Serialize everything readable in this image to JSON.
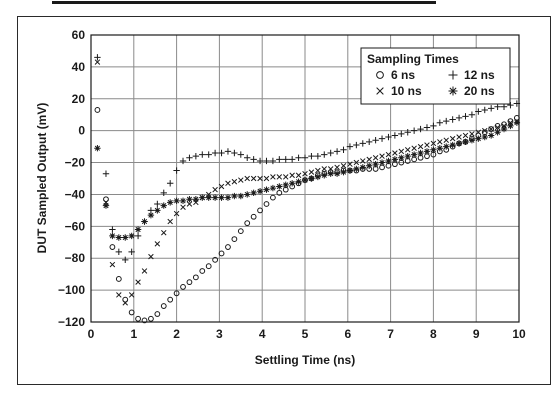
{
  "chart_data": {
    "type": "scatter",
    "title": "",
    "xlabel": "Settling Time (ns)",
    "ylabel": "DUT Sampled Output (mV)",
    "xlim": [
      0,
      10
    ],
    "ylim": [
      -120,
      60
    ],
    "xticks": [
      "0",
      "1",
      "2",
      "3",
      "4",
      "5",
      "6",
      "7",
      "8",
      "9",
      "10"
    ],
    "yticks": [
      "60",
      "40",
      "20",
      "0",
      "−20",
      "−40",
      "−60",
      "−80",
      "−100",
      "−120"
    ],
    "grid": true,
    "legend": {
      "title": "Sampling Times",
      "placement": "top-right",
      "entries": [
        {
          "label": "6 ns",
          "marker": "circle"
        },
        {
          "label": "12 ns",
          "marker": "plus"
        },
        {
          "label": "10 ns",
          "marker": "cross"
        },
        {
          "label": "20 ns",
          "marker": "star"
        }
      ]
    },
    "series": [
      {
        "name": "6 ns",
        "marker": "circle",
        "x": [
          0.15,
          0.35,
          0.5,
          0.65,
          0.8,
          0.95,
          1.1,
          1.25,
          1.4,
          1.55,
          1.7,
          1.85,
          2.0,
          2.15,
          2.3,
          2.45,
          2.6,
          2.75,
          2.9,
          3.05,
          3.2,
          3.35,
          3.5,
          3.65,
          3.8,
          3.95,
          4.1,
          4.25,
          4.4,
          4.55,
          4.7,
          4.85,
          5.0,
          5.15,
          5.3,
          5.45,
          5.6,
          5.75,
          5.9,
          6.05,
          6.2,
          6.35,
          6.5,
          6.65,
          6.8,
          6.95,
          7.1,
          7.25,
          7.4,
          7.55,
          7.7,
          7.85,
          8.0,
          8.15,
          8.3,
          8.45,
          8.6,
          8.75,
          8.9,
          9.05,
          9.2,
          9.35,
          9.5,
          9.65,
          9.8,
          9.95
        ],
        "y": [
          13,
          -43,
          -73,
          -93,
          -106,
          -114,
          -118,
          -119,
          -118,
          -115,
          -110,
          -106,
          -102,
          -98,
          -95,
          -92,
          -88,
          -85,
          -81,
          -77,
          -73,
          -68,
          -63,
          -58,
          -54,
          -50,
          -46,
          -42,
          -39,
          -37,
          -35,
          -33,
          -31,
          -30,
          -28,
          -27,
          -26,
          -26,
          -25,
          -25,
          -25,
          -24,
          -24,
          -24,
          -23,
          -22,
          -21,
          -20,
          -19,
          -18,
          -17,
          -16,
          -15,
          -13,
          -12,
          -10,
          -8,
          -7,
          -5,
          -3,
          -1,
          1,
          3,
          4,
          6,
          8
        ]
      },
      {
        "name": "12 ns",
        "marker": "plus",
        "x": [
          0.15,
          0.35,
          0.5,
          0.65,
          0.8,
          0.95,
          1.1,
          1.25,
          1.4,
          1.55,
          1.7,
          1.85,
          2.0,
          2.15,
          2.3,
          2.45,
          2.6,
          2.75,
          2.9,
          3.05,
          3.2,
          3.35,
          3.5,
          3.65,
          3.8,
          3.95,
          4.1,
          4.25,
          4.4,
          4.55,
          4.7,
          4.85,
          5.0,
          5.15,
          5.3,
          5.45,
          5.6,
          5.75,
          5.9,
          6.05,
          6.2,
          6.35,
          6.5,
          6.65,
          6.8,
          6.95,
          7.1,
          7.25,
          7.4,
          7.55,
          7.7,
          7.85,
          8.0,
          8.15,
          8.3,
          8.45,
          8.6,
          8.75,
          8.9,
          9.05,
          9.2,
          9.35,
          9.5,
          9.65,
          9.8,
          9.95
        ],
        "y": [
          46,
          -27,
          -62,
          -76,
          -81,
          -76,
          -66,
          -57,
          -50,
          -46,
          -39,
          -33,
          -25,
          -19,
          -17,
          -16,
          -15,
          -15,
          -14,
          -14,
          -13,
          -14,
          -15,
          -17,
          -18,
          -19,
          -19,
          -19,
          -18,
          -18,
          -18,
          -17,
          -17,
          -16,
          -16,
          -15,
          -14,
          -13,
          -12,
          -10,
          -9,
          -8,
          -7,
          -6,
          -5,
          -4,
          -3,
          -2,
          -1,
          0,
          1,
          2,
          3,
          5,
          6,
          7,
          8,
          9,
          10,
          12,
          13,
          14,
          15,
          15,
          16,
          17
        ]
      },
      {
        "name": "10 ns",
        "marker": "cross",
        "x": [
          0.15,
          0.35,
          0.5,
          0.65,
          0.8,
          0.95,
          1.1,
          1.25,
          1.4,
          1.55,
          1.7,
          1.85,
          2.0,
          2.15,
          2.3,
          2.45,
          2.6,
          2.75,
          2.9,
          3.05,
          3.2,
          3.35,
          3.5,
          3.65,
          3.8,
          3.95,
          4.1,
          4.25,
          4.4,
          4.55,
          4.7,
          4.85,
          5.0,
          5.15,
          5.3,
          5.45,
          5.6,
          5.75,
          5.9,
          6.05,
          6.2,
          6.35,
          6.5,
          6.65,
          6.8,
          6.95,
          7.1,
          7.25,
          7.4,
          7.55,
          7.7,
          7.85,
          8.0,
          8.15,
          8.3,
          8.45,
          8.6,
          8.75,
          8.9,
          9.05,
          9.2,
          9.35,
          9.5,
          9.65,
          9.8,
          9.95
        ],
        "y": [
          43,
          -45,
          -84,
          -103,
          -108,
          -103,
          -95,
          -88,
          -79,
          -71,
          -64,
          -57,
          -52,
          -48,
          -46,
          -45,
          -42,
          -40,
          -37,
          -35,
          -33,
          -32,
          -31,
          -30,
          -30,
          -30,
          -30,
          -29,
          -29,
          -29,
          -28,
          -28,
          -27,
          -26,
          -25,
          -24,
          -24,
          -23,
          -22,
          -21,
          -20,
          -19,
          -18,
          -17,
          -16,
          -15,
          -14,
          -13,
          -12,
          -11,
          -10,
          -9,
          -8,
          -7,
          -6,
          -5,
          -4,
          -3,
          -2,
          -1,
          0,
          1,
          2,
          3,
          5,
          6
        ]
      },
      {
        "name": "20 ns",
        "marker": "star",
        "x": [
          0.15,
          0.35,
          0.5,
          0.65,
          0.8,
          0.95,
          1.1,
          1.25,
          1.4,
          1.55,
          1.7,
          1.85,
          2.0,
          2.15,
          2.3,
          2.45,
          2.6,
          2.75,
          2.9,
          3.05,
          3.2,
          3.35,
          3.5,
          3.65,
          3.8,
          3.95,
          4.1,
          4.25,
          4.4,
          4.55,
          4.7,
          4.85,
          5.0,
          5.15,
          5.3,
          5.45,
          5.6,
          5.75,
          5.9,
          6.05,
          6.2,
          6.35,
          6.5,
          6.65,
          6.8,
          6.95,
          7.1,
          7.25,
          7.4,
          7.55,
          7.7,
          7.85,
          8.0,
          8.15,
          8.3,
          8.45,
          8.6,
          8.75,
          8.9,
          9.05,
          9.2,
          9.35,
          9.5,
          9.65,
          9.8,
          9.95
        ],
        "y": [
          -11,
          -47,
          -66,
          -67,
          -67,
          -66,
          -62,
          -57,
          -53,
          -50,
          -47,
          -45,
          -44,
          -44,
          -43,
          -43,
          -42,
          -42,
          -42,
          -42,
          -42,
          -41,
          -41,
          -40,
          -39,
          -38,
          -37,
          -36,
          -35,
          -34,
          -33,
          -32,
          -31,
          -30,
          -29,
          -28,
          -27,
          -27,
          -26,
          -25,
          -24,
          -23,
          -22,
          -21,
          -20,
          -19,
          -18,
          -17,
          -16,
          -15,
          -14,
          -13,
          -12,
          -11,
          -10,
          -9,
          -8,
          -7,
          -6,
          -5,
          -4,
          -3,
          -1,
          1,
          3,
          5
        ]
      }
    ]
  }
}
